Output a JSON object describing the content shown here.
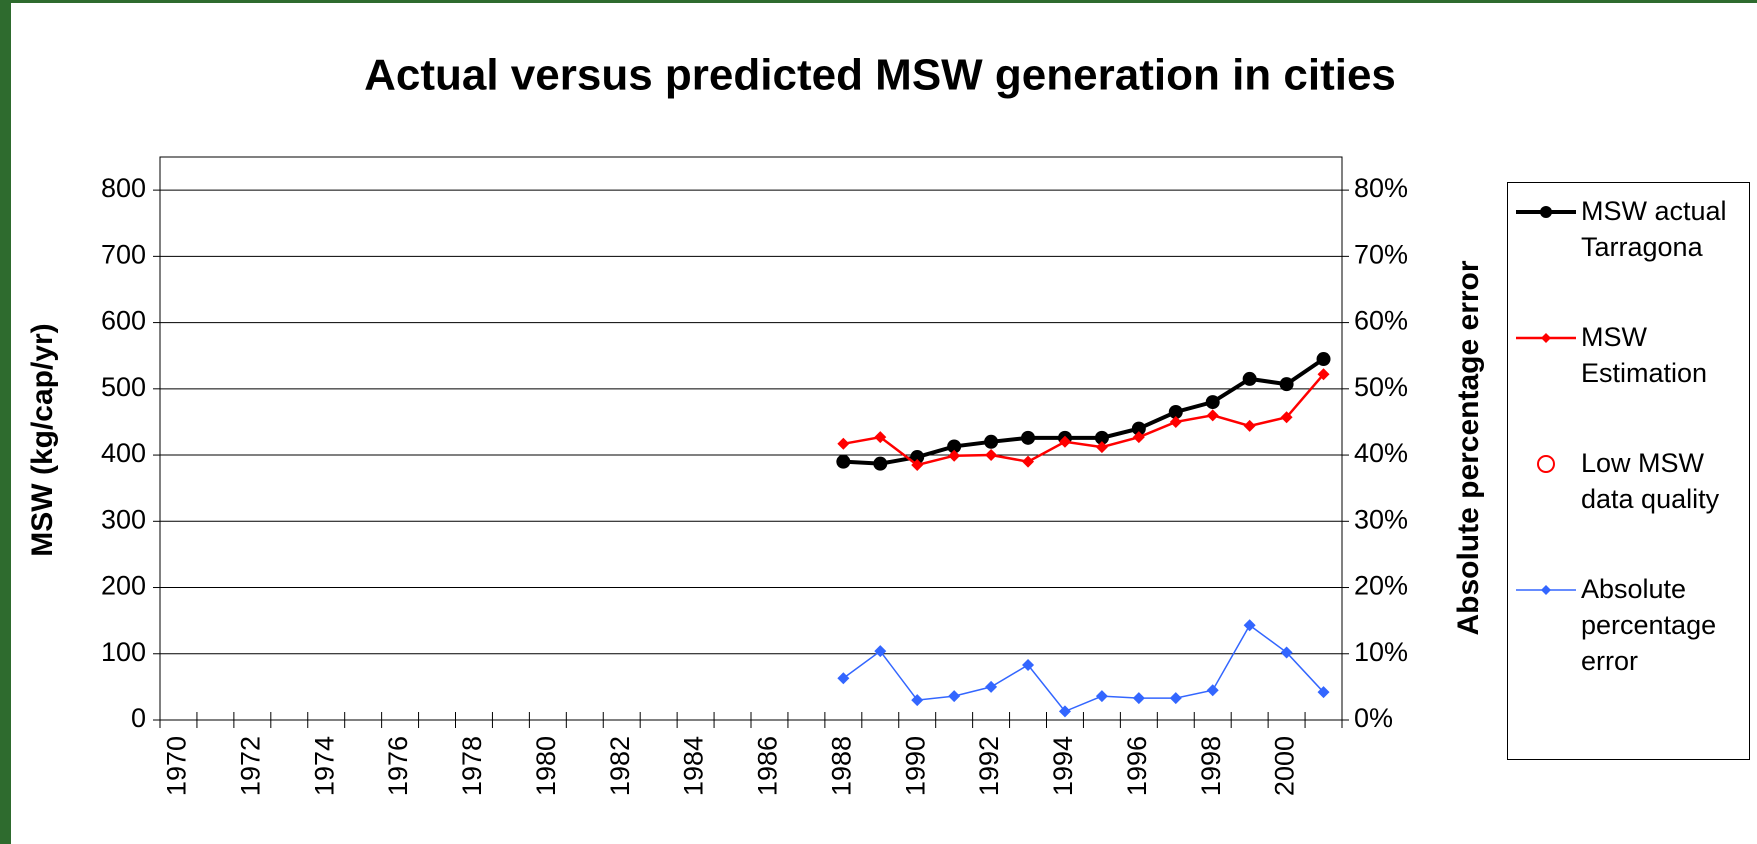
{
  "chart_data": {
    "type": "line",
    "title": "Actual versus predicted MSW generation in cities",
    "y_label": "MSW (kg/cap/yr)",
    "y2_label": "Absolute percentage error",
    "categories": [
      "1970",
      null,
      "1972",
      null,
      "1974",
      null,
      "1976",
      null,
      "1978",
      null,
      "1980",
      null,
      "1982",
      null,
      "1984",
      null,
      "1986",
      null,
      "1988",
      null,
      "1990",
      null,
      "1992",
      null,
      "1994",
      null,
      "1996",
      null,
      "1998",
      null,
      "2000",
      null
    ],
    "series": [
      {
        "name": "MSW actual Tarragona",
        "color": "#000000",
        "marker": "circle",
        "line_width": 4,
        "values": [
          null,
          null,
          null,
          null,
          null,
          null,
          null,
          null,
          null,
          null,
          null,
          null,
          null,
          null,
          null,
          null,
          null,
          null,
          390,
          387,
          397,
          413,
          420,
          426,
          426,
          426,
          440,
          465,
          480,
          515,
          507,
          545
        ]
      },
      {
        "name": "MSW Estimation",
        "color": "#ff0000",
        "marker": "diamond",
        "line_width": 2.5,
        "values": [
          null,
          null,
          null,
          null,
          null,
          null,
          null,
          null,
          null,
          null,
          null,
          null,
          null,
          null,
          null,
          null,
          null,
          null,
          417,
          427,
          385,
          399,
          400,
          390,
          420,
          412,
          427,
          450,
          460,
          444,
          457,
          522
        ]
      },
      {
        "name": "Low MSW data quality",
        "color": "#ff0000",
        "marker": "open-circle",
        "line_width": 0,
        "values": [
          null,
          null,
          null,
          null,
          null,
          null,
          null,
          null,
          null,
          null,
          null,
          null,
          null,
          null,
          null,
          null,
          null,
          null,
          null,
          null,
          null,
          null,
          null,
          null,
          null,
          null,
          null,
          null,
          null,
          null,
          null,
          null
        ]
      },
      {
        "name": "Absolute percentage error",
        "color": "#3366ff",
        "marker": "diamond",
        "line_width": 1.5,
        "axis": "y2",
        "values": [
          null,
          null,
          null,
          null,
          null,
          null,
          null,
          null,
          null,
          null,
          null,
          null,
          null,
          null,
          null,
          null,
          null,
          null,
          6.3,
          10.4,
          3.0,
          3.6,
          5.0,
          8.3,
          1.3,
          3.6,
          3.3,
          3.3,
          4.5,
          14.3,
          10.2,
          4.2
        ]
      }
    ],
    "ylim": [
      0,
      850
    ],
    "yticks": [
      0,
      100,
      200,
      300,
      400,
      500,
      600,
      700,
      800
    ],
    "y2lim": [
      0,
      85
    ],
    "y2ticks": [
      {
        "value": 0,
        "label": "0%"
      },
      {
        "value": 10,
        "label": "10%"
      },
      {
        "value": 20,
        "label": "20%"
      },
      {
        "value": 30,
        "label": "30%"
      },
      {
        "value": 40,
        "label": "40%"
      },
      {
        "value": 50,
        "label": "50%"
      },
      {
        "value": 60,
        "label": "60%"
      },
      {
        "value": 70,
        "label": "70%"
      },
      {
        "value": 80,
        "label": "80%"
      }
    ],
    "grid": true,
    "legend": "right"
  }
}
